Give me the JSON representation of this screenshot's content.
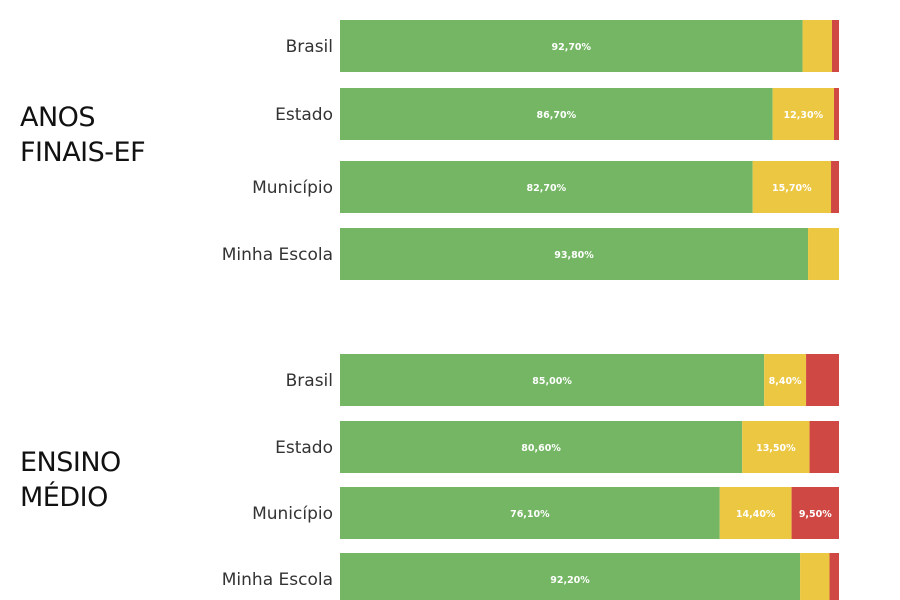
{
  "colors": {
    "green": "#74b663",
    "yellow": "#ecc742",
    "red": "#d04843"
  },
  "chart_data": {
    "type": "bar",
    "orientation": "horizontal",
    "stacked": true,
    "xlim": [
      0,
      100
    ],
    "groups": [
      {
        "title_lines": [
          "ANOS",
          "FINAIS-EF"
        ],
        "categories": [
          "Brasil",
          "Estado",
          "Município",
          "Minha Escola"
        ],
        "series": [
          {
            "values": [
              92.7,
              86.7,
              82.7,
              93.8
            ],
            "labels": [
              "92,70%",
              "86,70%",
              "82,70%",
              "93,80%"
            ]
          },
          {
            "values": [
              5.9,
              12.3,
              15.7,
              6.2
            ],
            "labels": [
              "",
              "12,30%",
              "15,70%",
              ""
            ]
          },
          {
            "values": [
              1.4,
              1.0,
              1.6,
              0.0
            ],
            "labels": [
              "",
              "",
              "",
              ""
            ]
          }
        ]
      },
      {
        "title_lines": [
          "ENSINO",
          "MÉDIO"
        ],
        "categories": [
          "Brasil",
          "Estado",
          "Município",
          "Minha Escola"
        ],
        "series": [
          {
            "values": [
              85.0,
              80.6,
              76.1,
              92.2
            ],
            "labels": [
              "85,00%",
              "80,60%",
              "76,10%",
              "92,20%"
            ]
          },
          {
            "values": [
              8.4,
              13.5,
              14.4,
              5.9
            ],
            "labels": [
              "8,40%",
              "13,50%",
              "14,40%",
              ""
            ]
          },
          {
            "values": [
              6.6,
              5.9,
              9.5,
              1.9
            ],
            "labels": [
              "",
              "",
              "9,50%",
              ""
            ]
          }
        ]
      }
    ]
  }
}
